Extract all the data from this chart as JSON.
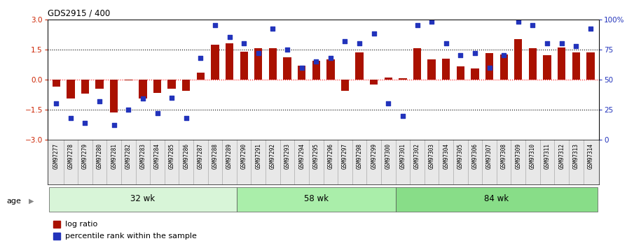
{
  "title": "GDS2915 / 400",
  "samples": [
    "GSM97277",
    "GSM97278",
    "GSM97279",
    "GSM97280",
    "GSM97281",
    "GSM97282",
    "GSM97283",
    "GSM97284",
    "GSM97285",
    "GSM97286",
    "GSM97287",
    "GSM97288",
    "GSM97289",
    "GSM97290",
    "GSM97291",
    "GSM97292",
    "GSM97293",
    "GSM97294",
    "GSM97295",
    "GSM97296",
    "GSM97297",
    "GSM97298",
    "GSM97299",
    "GSM97300",
    "GSM97301",
    "GSM97302",
    "GSM97303",
    "GSM97304",
    "GSM97305",
    "GSM97306",
    "GSM97307",
    "GSM97308",
    "GSM97309",
    "GSM97310",
    "GSM97311",
    "GSM97312",
    "GSM97313",
    "GSM97314"
  ],
  "log_ratio": [
    -0.35,
    -0.95,
    -0.7,
    -0.45,
    -1.65,
    -0.05,
    -0.95,
    -0.65,
    -0.45,
    -0.55,
    0.35,
    1.75,
    1.8,
    1.4,
    1.55,
    1.55,
    1.1,
    0.7,
    0.95,
    1.0,
    -0.55,
    1.35,
    -0.25,
    0.1,
    0.05,
    1.55,
    1.0,
    1.05,
    0.65,
    0.55,
    1.3,
    1.25,
    2.0,
    1.55,
    1.2,
    1.6,
    1.35,
    1.35
  ],
  "percentile": [
    30,
    18,
    14,
    32,
    12,
    25,
    34,
    22,
    35,
    18,
    68,
    95,
    85,
    80,
    72,
    92,
    75,
    60,
    65,
    68,
    82,
    80,
    88,
    30,
    20,
    95,
    98,
    80,
    70,
    72,
    60,
    70,
    98,
    95,
    80,
    80,
    78,
    92
  ],
  "groups": [
    {
      "label": "32 wk",
      "start": 0,
      "end": 13
    },
    {
      "label": "58 wk",
      "start": 13,
      "end": 24
    },
    {
      "label": "84 wk",
      "start": 24,
      "end": 38
    }
  ],
  "group_colors": [
    "#d8f5d8",
    "#aaeeaa",
    "#88dd88"
  ],
  "bar_color": "#aa1100",
  "dot_color": "#2233bb",
  "ylim": [
    -3,
    3
  ],
  "yticks_left": [
    -3,
    -1.5,
    0,
    1.5,
    3
  ],
  "yticks_right": [
    0,
    25,
    50,
    75,
    100
  ],
  "hlines": [
    [
      -1.5,
      "black"
    ],
    [
      0.0,
      "red"
    ],
    [
      1.5,
      "black"
    ]
  ],
  "bg_color": "#ffffff",
  "xtick_bg": "#e8e8e8"
}
